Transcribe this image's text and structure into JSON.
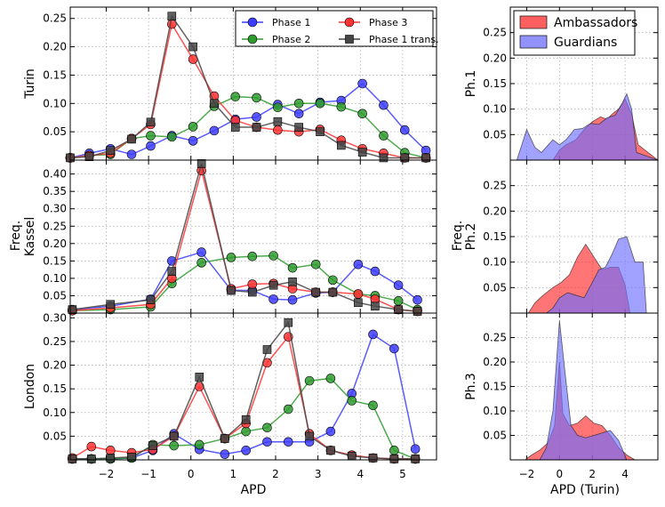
{
  "colors": {
    "phase1": "#3d3dff",
    "phase2": "#2e9b2e",
    "phase3": "#ff3333",
    "phase1_trans": "#444444",
    "ambassadors": "#ff2a2a",
    "guardians": "#6e6eff",
    "overlap": "#7b1a8f"
  },
  "chart_data": [
    {
      "type": "line",
      "panel": "left",
      "x": [
        -2.8,
        -2.4,
        -1.9,
        -1.4,
        -0.9,
        -0.4,
        0.25,
        0.9,
        1.4,
        1.9,
        2.35,
        2.9,
        3.3,
        3.85,
        4.35,
        4.85,
        5.35
      ],
      "xlim": [
        -2.85,
        5.8
      ],
      "xticks": [
        "−2",
        "−1",
        "0",
        "1",
        "2",
        "3",
        "4",
        "5"
      ],
      "xtick_values": [
        -2,
        -1,
        0,
        1,
        2,
        3,
        4,
        5
      ],
      "xlabel": "APD",
      "ylabel": "Freq.",
      "legend": {
        "position": "top-right",
        "entries": [
          "Phase 1",
          "Phase 2",
          "Phase 3",
          "Phase 1 trans."
        ]
      },
      "subplots": [
        {
          "name": "Turin",
          "ylim": [
            0,
            0.27
          ],
          "yticks": [
            "0.05",
            "0.10",
            "0.15",
            "0.20",
            "0.25"
          ],
          "ytick_values": [
            0.05,
            0.1,
            0.15,
            0.2,
            0.25
          ],
          "x": [
            -2.85,
            -2.4,
            -1.9,
            -1.4,
            -0.95,
            -0.45,
            0.05,
            0.55,
            1.05,
            1.55,
            2.05,
            2.55,
            3.05,
            3.55,
            4.05,
            4.55,
            5.05,
            5.55
          ],
          "series": [
            {
              "name": "Phase 1",
              "values": [
                0.004,
                0.012,
                0.02,
                0.01,
                0.025,
                0.043,
                0.034,
                0.052,
                0.072,
                0.076,
                0.098,
                0.082,
                0.102,
                0.105,
                0.135,
                0.097,
                0.053,
                0.017
              ]
            },
            {
              "name": "Phase 2",
              "values": [
                0.004,
                0.008,
                0.01,
                0.038,
                0.043,
                0.041,
                0.059,
                0.095,
                0.112,
                0.11,
                0.093,
                0.1,
                0.1,
                0.094,
                0.082,
                0.043,
                0.013,
                0.004
              ]
            },
            {
              "name": "Phase 3",
              "values": [
                0.004,
                0.008,
                0.012,
                0.038,
                0.063,
                0.24,
                0.178,
                0.113,
                0.07,
                0.058,
                0.053,
                0.05,
                0.054,
                0.035,
                0.02,
                0.012,
                0.004,
                0.004
              ]
            },
            {
              "name": "Phase 1 trans.",
              "values": [
                0.004,
                0.006,
                0.017,
                0.037,
                0.067,
                0.254,
                0.2,
                0.1,
                0.058,
                0.058,
                0.068,
                0.058,
                0.05,
                0.026,
                0.014,
                0.004,
                0.004,
                0.004
              ]
            }
          ]
        },
        {
          "name": "Kassel",
          "ylim": [
            0,
            0.44
          ],
          "yticks": [
            "0.05",
            "0.10",
            "0.15",
            "0.20",
            "0.25",
            "0.30",
            "0.35",
            "0.40"
          ],
          "ytick_values": [
            0.05,
            0.1,
            0.15,
            0.2,
            0.25,
            0.3,
            0.35,
            0.4
          ],
          "x": [
            -2.8,
            -1.9,
            -0.95,
            -0.45,
            0.25,
            0.95,
            1.45,
            1.95,
            2.4,
            2.95,
            3.35,
            3.95,
            4.35,
            4.9,
            5.35
          ],
          "series": [
            {
              "name": "Phase 1",
              "values": [
                0.01,
                0.02,
                0.04,
                0.15,
                0.175,
                0.066,
                0.065,
                0.04,
                0.038,
                0.058,
                0.06,
                0.14,
                0.12,
                0.08,
                0.038
              ]
            },
            {
              "name": "Phase 2",
              "values": [
                0.007,
                0.01,
                0.018,
                0.085,
                0.145,
                0.16,
                0.163,
                0.165,
                0.13,
                0.14,
                0.095,
                0.055,
                0.05,
                0.035,
                0.01
              ]
            },
            {
              "name": "Phase 3",
              "values": [
                0.007,
                0.015,
                0.025,
                0.1,
                0.41,
                0.07,
                0.083,
                0.085,
                0.07,
                0.06,
                0.06,
                0.055,
                0.04,
                0.01,
                0.005
              ]
            },
            {
              "name": "Phase 1 trans.",
              "values": [
                0.01,
                0.025,
                0.038,
                0.12,
                0.43,
                0.065,
                0.06,
                0.08,
                0.09,
                0.06,
                0.06,
                0.03,
                0.02,
                0.01,
                0.005
              ]
            }
          ]
        },
        {
          "name": "London",
          "ylim": [
            0,
            0.31
          ],
          "yticks": [
            "0.05",
            "0.10",
            "0.15",
            "0.20",
            "0.25",
            "0.30"
          ],
          "ytick_values": [
            0.05,
            0.1,
            0.15,
            0.2,
            0.25,
            0.3
          ],
          "x": [
            -2.8,
            -2.35,
            -1.9,
            -1.4,
            -0.9,
            -0.4,
            0.2,
            0.8,
            1.3,
            1.8,
            2.3,
            2.8,
            3.3,
            3.8,
            4.3,
            4.8,
            5.3
          ],
          "series": [
            {
              "name": "Phase 1",
              "values": [
                0.002,
                0.002,
                0.002,
                0.004,
                0.02,
                0.055,
                0.022,
                0.012,
                0.02,
                0.038,
                0.038,
                0.038,
                0.06,
                0.14,
                0.265,
                0.235,
                0.023
              ]
            },
            {
              "name": "Phase 2",
              "values": [
                0.002,
                0.002,
                0.002,
                0.004,
                0.032,
                0.03,
                0.032,
                0.045,
                0.06,
                0.068,
                0.107,
                0.167,
                0.172,
                0.125,
                0.115,
                0.02,
                0.002
              ]
            },
            {
              "name": "Phase 3",
              "values": [
                0.004,
                0.028,
                0.02,
                0.015,
                0.022,
                0.05,
                0.155,
                0.045,
                0.077,
                0.205,
                0.26,
                0.055,
                0.02,
                0.01,
                0.004,
                0.002,
                0.002
              ]
            },
            {
              "name": "Phase 1 trans.",
              "values": [
                0.002,
                0.002,
                0.004,
                0.006,
                0.03,
                0.05,
                0.175,
                0.045,
                0.085,
                0.233,
                0.29,
                0.05,
                0.02,
                0.008,
                0.004,
                0.002,
                0.002
              ]
            }
          ]
        }
      ]
    },
    {
      "type": "area",
      "panel": "right",
      "xlim": [
        -3,
        6
      ],
      "xticks": [
        "−2",
        "0",
        "2",
        "4"
      ],
      "xtick_values": [
        -2,
        0,
        2,
        4
      ],
      "xlabel": "APD (Turin)",
      "ylabel": "Freq.",
      "ylim": [
        0,
        0.3
      ],
      "yticks": [
        "0.05",
        "0.10",
        "0.15",
        "0.20",
        "0.25"
      ],
      "ytick_values": [
        0.05,
        0.1,
        0.15,
        0.2,
        0.25
      ],
      "legend": {
        "position": "top-left",
        "entries": [
          "Ambassadors",
          "Guardians"
        ]
      },
      "subplots": [
        {
          "name": "Ph.1",
          "series": [
            {
              "name": "Ambassadors",
              "x": [
                -3,
                -0.4,
                0,
                0.4,
                1,
                1.5,
                2,
                2.5,
                2.9,
                3.2,
                3.6,
                4,
                4.4,
                4.8,
                6
              ],
              "values": [
                0,
                0,
                0.02,
                0.03,
                0.04,
                0.06,
                0.075,
                0.085,
                0.08,
                0.09,
                0.1,
                0.12,
                0.09,
                0.03,
                0
              ]
            },
            {
              "name": "Guardians",
              "x": [
                -3,
                -2.6,
                -2,
                -1.5,
                -1.1,
                -0.4,
                0,
                0.4,
                0.9,
                1.4,
                1.9,
                2.4,
                2.9,
                3.4,
                3.8,
                4.1,
                4.4,
                4.7,
                6
              ],
              "values": [
                0,
                0,
                0.06,
                0.025,
                0.015,
                0.04,
                0.03,
                0.04,
                0.06,
                0.062,
                0.072,
                0.07,
                0.083,
                0.088,
                0.11,
                0.13,
                0.1,
                0.015,
                0
              ]
            }
          ]
        },
        {
          "name": "Ph.2",
          "series": [
            {
              "name": "Ambassadors",
              "x": [
                -3,
                -1.9,
                -1.5,
                -1,
                -0.4,
                0.1,
                0.6,
                1.1,
                1.6,
                2.1,
                2.6,
                3.1,
                3.6,
                4,
                4.3,
                6
              ],
              "values": [
                0,
                0,
                0.02,
                0.035,
                0.05,
                0.06,
                0.075,
                0.11,
                0.135,
                0.11,
                0.085,
                0.09,
                0.09,
                0.055,
                0,
                0
              ]
            },
            {
              "name": "Guardians",
              "x": [
                -3,
                -0.8,
                -0.4,
                0,
                0.5,
                1,
                1.5,
                2,
                2.4,
                2.8,
                3.2,
                3.6,
                4.1,
                4.6,
                5.1,
                5.3,
                6
              ],
              "values": [
                0,
                0,
                0.01,
                0.03,
                0.04,
                0.035,
                0.03,
                0.06,
                0.085,
                0.09,
                0.115,
                0.145,
                0.15,
                0.1,
                0.1,
                0,
                0
              ]
            }
          ]
        },
        {
          "name": "Ph.3",
          "series": [
            {
              "name": "Ambassadors",
              "x": [
                -3,
                -2.1,
                -1.7,
                -1.2,
                -0.7,
                -0.3,
                0,
                0.2,
                0.6,
                1.1,
                1.6,
                2.1,
                2.6,
                3.1,
                3.6,
                4.1,
                4.6,
                6
              ],
              "values": [
                0,
                0,
                0.01,
                0.02,
                0.035,
                0.07,
                0.2,
                0.095,
                0.07,
                0.075,
                0.09,
                0.075,
                0.07,
                0.05,
                0.025,
                0.01,
                0,
                0
              ]
            },
            {
              "name": "Guardians",
              "x": [
                -3,
                -1.2,
                -0.8,
                -0.4,
                0,
                0.3,
                0.7,
                1.1,
                1.6,
                2.1,
                2.6,
                3.1,
                3.6,
                4.1,
                6
              ],
              "values": [
                0,
                0,
                0.025,
                0.1,
                0.285,
                0.19,
                0.07,
                0.05,
                0.045,
                0.05,
                0.055,
                0.06,
                0.04,
                0,
                0
              ]
            }
          ]
        }
      ]
    }
  ]
}
